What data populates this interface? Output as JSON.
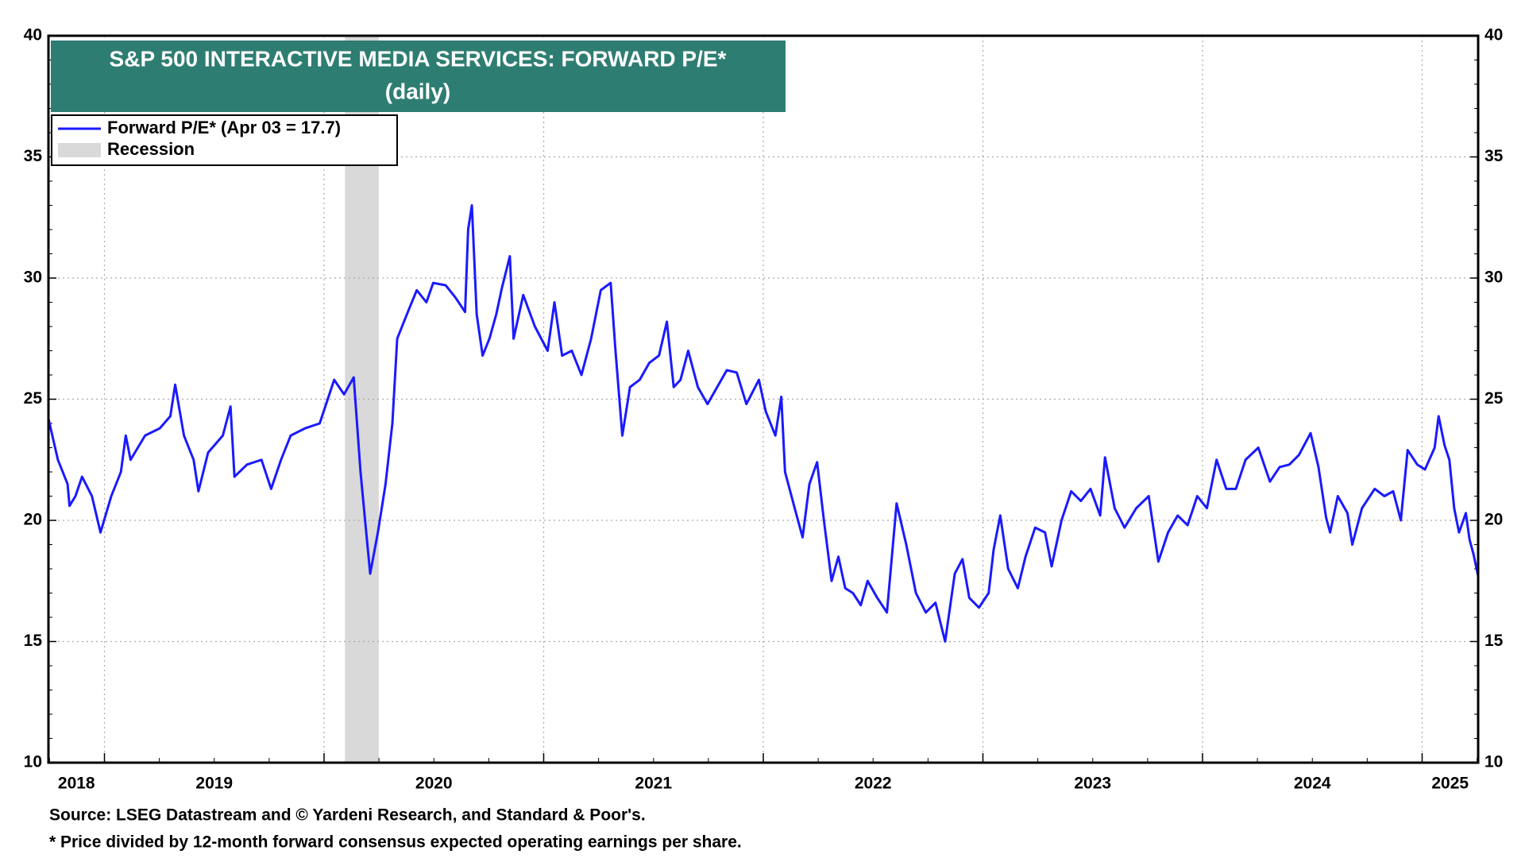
{
  "chart_data": {
    "type": "line",
    "title": "S&P 500 INTERACTIVE MEDIA SERVICES: FORWARD P/E*",
    "subtitle": "(daily)",
    "notes": [
      "Source: LSEG Datastream and © Yardeni Research, and Standard & Poor's.",
      "* Price divided by 12-month forward consensus expected operating earnings per share."
    ],
    "xlim": [
      2018.745,
      2025.255
    ],
    "xticks": [
      2019,
      2020,
      2021,
      2022,
      2023,
      2024,
      2025
    ],
    "year_labels": [
      2018,
      2019,
      2020,
      2021,
      2022,
      2023,
      2024,
      2025
    ],
    "ylim": [
      10,
      40
    ],
    "yticks": [
      10,
      15,
      20,
      25,
      30,
      35,
      40
    ],
    "y2lim": [
      10,
      40
    ],
    "y2ticks": [
      10,
      15,
      20,
      25,
      30,
      35,
      40
    ],
    "grid": true,
    "legend": "top-left",
    "recession": {
      "name": "Recession",
      "color": "#d9d9d9",
      "start": 2020.095,
      "end": 2020.249
    },
    "series": [
      {
        "name": "Forward P/E* (Apr 03 = 17.7)",
        "color": "#1a1aff",
        "x": [
          2018.745,
          2018.788,
          2018.832,
          2018.841,
          2018.868,
          2018.898,
          2018.943,
          2018.982,
          2019.031,
          2019.075,
          2019.097,
          2019.119,
          2019.185,
          2019.252,
          2019.3,
          2019.322,
          2019.362,
          2019.406,
          2019.428,
          2019.472,
          2019.539,
          2019.574,
          2019.592,
          2019.649,
          2019.715,
          2019.759,
          2019.804,
          2019.848,
          2019.914,
          2019.98,
          2020.046,
          2020.091,
          2020.135,
          2020.166,
          2020.192,
          2020.21,
          2020.245,
          2020.28,
          2020.311,
          2020.333,
          2020.377,
          2020.422,
          2020.466,
          2020.497,
          2020.554,
          2020.598,
          2020.642,
          2020.656,
          2020.673,
          2020.695,
          2020.722,
          2020.753,
          2020.784,
          2020.81,
          2020.846,
          2020.863,
          2020.907,
          2020.96,
          2021.018,
          2021.049,
          2021.084,
          2021.128,
          2021.172,
          2021.216,
          2021.26,
          2021.305,
          2021.327,
          2021.358,
          2021.393,
          2021.437,
          2021.481,
          2021.525,
          2021.561,
          2021.592,
          2021.623,
          2021.658,
          2021.702,
          2021.746,
          2021.79,
          2021.834,
          2021.879,
          2021.923,
          2021.98,
          2022.011,
          2022.055,
          2022.082,
          2022.099,
          2022.143,
          2022.179,
          2022.21,
          2022.245,
          2022.276,
          2022.311,
          2022.342,
          2022.373,
          2022.408,
          2022.444,
          2022.475,
          2022.519,
          2022.563,
          2022.607,
          2022.651,
          2022.695,
          2022.74,
          2022.784,
          2022.828,
          2022.872,
          2022.907,
          2022.938,
          2022.982,
          2023.026,
          2023.049,
          2023.079,
          2023.115,
          2023.159,
          2023.194,
          2023.238,
          2023.283,
          2023.313,
          2023.358,
          2023.402,
          2023.446,
          2023.49,
          2023.534,
          2023.556,
          2023.6,
          2023.645,
          2023.698,
          2023.755,
          2023.799,
          2023.843,
          2023.887,
          2023.932,
          2023.976,
          2024.02,
          2024.064,
          2024.108,
          2024.152,
          2024.196,
          2024.254,
          2024.307,
          2024.351,
          2024.395,
          2024.439,
          2024.492,
          2024.528,
          2024.563,
          2024.581,
          2024.616,
          2024.66,
          2024.682,
          2024.726,
          2024.784,
          2024.828,
          2024.868,
          2024.903,
          2024.934,
          2024.978,
          2025.013,
          2025.057,
          2025.075,
          2025.102,
          2025.124,
          2025.146,
          2025.168,
          2025.199,
          2025.216,
          2025.234,
          2025.255
        ],
        "values": [
          24.2,
          22.5,
          21.5,
          20.6,
          21,
          21.8,
          21,
          19.5,
          21,
          22,
          23.5,
          22.5,
          23.5,
          23.8,
          24.3,
          25.6,
          23.5,
          22.5,
          21.2,
          22.8,
          23.5,
          24.7,
          21.8,
          22.3,
          22.5,
          21.3,
          22.5,
          23.5,
          23.8,
          24,
          25.8,
          25.2,
          25.9,
          22,
          19.5,
          17.8,
          19.5,
          21.5,
          24,
          27.5,
          28.5,
          29.5,
          29,
          29.8,
          29.7,
          29.2,
          28.6,
          32,
          33,
          28.5,
          26.8,
          27.5,
          28.5,
          29.6,
          30.9,
          27.5,
          29.3,
          28,
          27,
          29,
          26.8,
          27,
          26,
          27.5,
          29.5,
          29.8,
          27,
          23.5,
          25.5,
          25.8,
          26.5,
          26.8,
          28.2,
          25.5,
          25.8,
          27,
          25.5,
          24.8,
          25.5,
          26.2,
          26.1,
          24.8,
          25.8,
          24.5,
          23.5,
          25.1,
          22,
          20.5,
          19.3,
          21.5,
          22.4,
          20,
          17.5,
          18.5,
          17.2,
          17,
          16.5,
          17.5,
          16.8,
          16.2,
          20.7,
          19,
          17,
          16.2,
          16.6,
          15,
          17.8,
          18.4,
          16.8,
          16.4,
          17,
          18.8,
          20.2,
          18,
          17.2,
          18.5,
          19.7,
          19.5,
          18.1,
          20,
          21.2,
          20.8,
          21.3,
          20.2,
          22.6,
          20.5,
          19.7,
          20.5,
          21,
          18.3,
          19.5,
          20.2,
          19.8,
          21,
          20.5,
          22.5,
          21.3,
          21.3,
          22.5,
          23,
          21.6,
          22.2,
          22.3,
          22.7,
          23.6,
          22.2,
          20.1,
          19.5,
          21,
          20.3,
          19,
          20.5,
          21.3,
          21,
          21.2,
          20,
          22.9,
          22.3,
          22.1,
          23,
          24.3,
          23.1,
          22.5,
          20.5,
          19.5,
          20.3,
          19.2,
          18.6,
          17.7
        ]
      }
    ]
  }
}
